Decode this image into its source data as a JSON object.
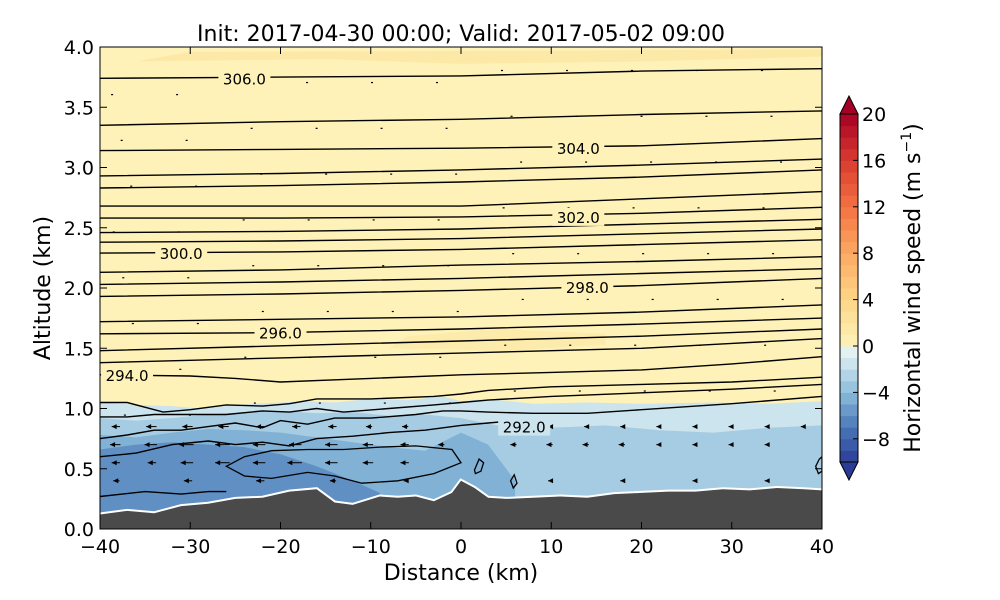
{
  "chart_data": {
    "type": "heatmap",
    "title": "Init: 2017-04-30 00:00; Valid: 2017-05-02 09:00",
    "xlabel": "Distance (km)",
    "ylabel": "Altitude (km)",
    "xlim": [
      -40,
      40
    ],
    "ylim": [
      0.0,
      4.0
    ],
    "xticks": [
      "−40",
      "−30",
      "−20",
      "−10",
      "0",
      "10",
      "20",
      "30",
      "40"
    ],
    "yticks": [
      "0.0",
      "0.5",
      "1.0",
      "1.5",
      "2.0",
      "2.5",
      "3.0",
      "3.5",
      "4.0"
    ],
    "grid": false,
    "colorbar": {
      "label": "Horizontal wind speed (m s",
      "label_sup": "−1",
      "label_close": ")",
      "range": [
        -10,
        20
      ],
      "step": 1,
      "extend": "both",
      "ticks": [
        "−8",
        "−4",
        "0",
        "4",
        "8",
        "12",
        "16",
        "20"
      ],
      "tick_values": [
        -8,
        -4,
        0,
        4,
        8,
        12,
        16,
        20
      ]
    },
    "contour_labels": [
      {
        "text": "306.0",
        "x": -24,
        "y": 3.74
      },
      {
        "text": "304.0",
        "x": 13,
        "y": 3.16
      },
      {
        "text": "302.0",
        "x": 13,
        "y": 2.59
      },
      {
        "text": "300.0",
        "x": -31,
        "y": 2.29
      },
      {
        "text": "298.0",
        "x": 14,
        "y": 2.01
      },
      {
        "text": "296.0",
        "x": -20,
        "y": 1.63
      },
      {
        "text": "294.0",
        "x": -37,
        "y": 1.28
      },
      {
        "text": "292.0",
        "x": 7,
        "y": 0.85
      }
    ],
    "terrain": {
      "x": [
        -40,
        -37,
        -34,
        -31,
        -28,
        -25,
        -22,
        -19,
        -16,
        -14,
        -12,
        -9,
        -7,
        -5,
        -3,
        -1,
        0,
        1.5,
        3,
        5,
        8,
        11,
        14,
        17,
        20,
        23,
        26,
        29,
        32,
        35,
        38,
        40
      ],
      "y": [
        0.12,
        0.15,
        0.13,
        0.19,
        0.21,
        0.25,
        0.26,
        0.31,
        0.33,
        0.22,
        0.2,
        0.27,
        0.26,
        0.27,
        0.23,
        0.3,
        0.4,
        0.34,
        0.26,
        0.25,
        0.26,
        0.27,
        0.26,
        0.29,
        0.3,
        0.31,
        0.31,
        0.33,
        0.32,
        0.34,
        0.33,
        0.32
      ]
    },
    "isentropes": [
      {
        "theta": 306.0,
        "x": [
          -40,
          -20,
          0,
          20,
          40
        ],
        "y": [
          3.74,
          3.75,
          3.76,
          3.8,
          3.82
        ]
      },
      {
        "theta": 305.5,
        "x": [
          -40,
          -20,
          0,
          20,
          40
        ],
        "y": [
          3.35,
          3.38,
          3.4,
          3.44,
          3.47
        ]
      },
      {
        "theta": 304.0,
        "x": [
          -40,
          -20,
          0,
          20,
          40
        ],
        "y": [
          3.14,
          3.15,
          3.16,
          3.18,
          3.24
        ]
      },
      {
        "theta": 303.5,
        "x": [
          -40,
          -20,
          0,
          20,
          40
        ],
        "y": [
          2.93,
          2.95,
          2.98,
          3.02,
          3.07
        ]
      },
      {
        "theta": 303.0,
        "x": [
          -40,
          -20,
          0,
          20,
          40
        ],
        "y": [
          2.83,
          2.85,
          2.88,
          2.92,
          2.98
        ]
      },
      {
        "theta": 302.0,
        "x": [
          -40,
          -20,
          0,
          20,
          40
        ],
        "y": [
          2.68,
          2.68,
          2.68,
          2.74,
          2.8
        ]
      },
      {
        "theta": 301.5,
        "x": [
          -40,
          -20,
          0,
          20,
          40
        ],
        "y": [
          2.58,
          2.58,
          2.59,
          2.62,
          2.67
        ]
      },
      {
        "theta": 301.0,
        "x": [
          -40,
          -20,
          0,
          20,
          40
        ],
        "y": [
          2.46,
          2.47,
          2.49,
          2.53,
          2.57
        ]
      },
      {
        "theta": 300.5,
        "x": [
          -40,
          -20,
          0,
          20,
          40
        ],
        "y": [
          2.38,
          2.39,
          2.41,
          2.45,
          2.49
        ]
      },
      {
        "theta": 300.0,
        "x": [
          -40,
          -20,
          0,
          20,
          40
        ],
        "y": [
          2.29,
          2.3,
          2.32,
          2.36,
          2.4
        ]
      },
      {
        "theta": 299.5,
        "x": [
          -40,
          -20,
          0,
          20,
          40
        ],
        "y": [
          2.13,
          2.15,
          2.19,
          2.22,
          2.26
        ]
      },
      {
        "theta": 298.5,
        "x": [
          -40,
          -20,
          0,
          20,
          40
        ],
        "y": [
          2.03,
          2.05,
          2.08,
          2.12,
          2.16
        ]
      },
      {
        "theta": 298.0,
        "x": [
          -40,
          -20,
          0,
          20,
          40
        ],
        "y": [
          1.93,
          1.95,
          1.98,
          2.02,
          2.08
        ]
      },
      {
        "theta": 297.5,
        "x": [
          -40,
          -20,
          0,
          20,
          40
        ],
        "y": [
          1.72,
          1.74,
          1.76,
          1.8,
          1.86
        ]
      },
      {
        "theta": 296.5,
        "x": [
          -40,
          -20,
          0,
          20,
          40
        ],
        "y": [
          1.62,
          1.63,
          1.66,
          1.7,
          1.75
        ]
      },
      {
        "theta": 296.0,
        "x": [
          -40,
          -20,
          0,
          20,
          40
        ],
        "y": [
          1.48,
          1.52,
          1.56,
          1.6,
          1.66
        ]
      },
      {
        "theta": 295.0,
        "x": [
          -40,
          -30,
          -20,
          -10,
          0,
          10,
          20,
          30,
          40
        ],
        "y": [
          1.38,
          1.4,
          1.42,
          1.44,
          1.46,
          1.48,
          1.5,
          1.54,
          1.58
        ]
      },
      {
        "theta": 294.0,
        "x": [
          -40,
          -30,
          -25,
          -20,
          -10,
          0,
          10,
          20,
          30,
          40
        ],
        "y": [
          1.28,
          1.27,
          1.25,
          1.22,
          1.25,
          1.28,
          1.3,
          1.32,
          1.37,
          1.43
        ]
      },
      {
        "theta": 293.0,
        "x": [
          -40,
          -37,
          -33,
          -30,
          -26,
          -22,
          -19,
          -16,
          -10,
          -3,
          0,
          3,
          10,
          20,
          30,
          40
        ],
        "y": [
          1.05,
          1.05,
          0.97,
          0.99,
          1.03,
          1.02,
          1.04,
          1.08,
          1.08,
          1.1,
          1.12,
          1.15,
          1.18,
          1.2,
          1.22,
          1.26
        ]
      },
      {
        "theta": 292.5,
        "x": [
          -40,
          -37,
          -34,
          -30,
          -26,
          -22,
          -19,
          -16,
          -13,
          -8,
          -3,
          0,
          3,
          10,
          20,
          30,
          40
        ],
        "y": [
          0.93,
          0.93,
          0.95,
          0.95,
          0.95,
          0.98,
          0.97,
          1.0,
          0.97,
          1.0,
          1.03,
          1.05,
          1.07,
          1.1,
          1.13,
          1.16,
          1.2
        ]
      },
      {
        "theta": 292.0,
        "x": [
          -40,
          -37,
          -34,
          -31,
          -28,
          -25,
          -22,
          -20,
          -17,
          -14,
          -10,
          -5,
          -2,
          0,
          3,
          8,
          14,
          20,
          30,
          40
        ],
        "y": [
          0.75,
          0.78,
          0.82,
          0.82,
          0.85,
          0.88,
          0.84,
          0.9,
          0.87,
          0.92,
          0.92,
          0.95,
          0.98,
          0.98,
          0.97,
          0.96,
          0.96,
          0.99,
          1.04,
          1.1
        ]
      },
      {
        "theta": 291.5,
        "x": [
          -40,
          -36,
          -32,
          -28,
          -25,
          -22,
          -19,
          -16,
          -12,
          -8,
          -4,
          0,
          3,
          6
        ],
        "y": [
          0.6,
          0.63,
          0.7,
          0.73,
          0.7,
          0.72,
          0.69,
          0.75,
          0.77,
          0.8,
          0.82,
          0.86,
          0.88,
          0.9
        ]
      },
      {
        "theta": 291.0,
        "x": [
          -40,
          -35,
          -31,
          -28,
          -26
        ],
        "y": [
          0.27,
          0.31,
          0.29,
          0.31,
          0.31
        ]
      }
    ],
    "closed_contours": [
      {
        "x": [
          -26,
          -24,
          -21,
          -17,
          -13,
          -9,
          -5,
          -1,
          0,
          -3,
          -7,
          -11,
          -14,
          -17,
          -21,
          -24,
          -26
        ],
        "y": [
          0.52,
          0.6,
          0.65,
          0.66,
          0.66,
          0.68,
          0.69,
          0.66,
          0.55,
          0.46,
          0.4,
          0.38,
          0.44,
          0.47,
          0.42,
          0.44,
          0.52
        ]
      },
      {
        "x": [
          1.5,
          2.0,
          2.5,
          2.2,
          1.6,
          1.5
        ],
        "y": [
          0.49,
          0.58,
          0.55,
          0.48,
          0.46,
          0.49
        ]
      },
      {
        "x": [
          5.5,
          5.9,
          6.2,
          5.8,
          5.5
        ],
        "y": [
          0.4,
          0.45,
          0.38,
          0.34,
          0.4
        ]
      },
      {
        "x": [
          39.3,
          39.7,
          40,
          40,
          39.6,
          39.3
        ],
        "y": [
          0.52,
          0.58,
          0.6,
          0.48,
          0.46,
          0.52
        ]
      }
    ],
    "cool_bands": [
      {
        "upper_x": [
          -40,
          -36,
          -32,
          -29,
          -26,
          -23,
          -20,
          -17,
          -14,
          -10,
          -6,
          -2,
          0,
          3,
          8,
          14,
          20,
          28,
          34,
          40
        ],
        "upper_y": [
          1.05,
          1.03,
          1.02,
          1.0,
          1.02,
          1.04,
          1.05,
          1.06,
          1.05,
          1.08,
          1.07,
          1.1,
          1.06,
          1.08,
          1.04,
          1.05,
          1.04,
          1.05,
          1.04,
          1.06
        ],
        "speed": -1.5
      },
      {
        "upper_x": [
          -40,
          -36,
          -32,
          -28,
          -24,
          -20,
          -16,
          -12,
          -8,
          -4,
          0,
          4,
          10,
          16,
          22,
          28,
          34,
          40
        ],
        "upper_y": [
          0.92,
          0.9,
          0.92,
          0.95,
          0.97,
          0.98,
          0.96,
          0.97,
          0.94,
          0.95,
          0.92,
          0.86,
          0.84,
          0.86,
          0.82,
          0.8,
          0.84,
          0.86
        ],
        "speed": -3
      },
      {
        "upper_x": [
          -40,
          -36,
          -32,
          -28,
          -24,
          -20,
          -16,
          -12,
          -8,
          -4,
          0,
          3,
          6
        ],
        "upper_y": [
          0.78,
          0.76,
          0.8,
          0.83,
          0.82,
          0.8,
          0.76,
          0.72,
          0.68,
          0.65,
          0.8,
          0.7,
          0.4
        ],
        "speed": -4.5
      },
      {
        "upper_x": [
          -40,
          -36,
          -32,
          -28,
          -24,
          -20,
          -16,
          -12,
          -9
        ],
        "upper_y": [
          0.66,
          0.7,
          0.72,
          0.7,
          0.68,
          0.62,
          0.52,
          0.4,
          0.3
        ],
        "speed": -6
      }
    ],
    "warm_patches": [
      {
        "x": [
          -36,
          -15,
          0,
          20,
          40,
          40,
          10,
          -30
        ],
        "y": [
          3.88,
          3.9,
          3.86,
          3.88,
          3.92,
          3.98,
          3.97,
          3.96
        ],
        "speed": 1.8
      },
      {
        "x": [
          -8,
          5,
          16,
          16,
          4,
          -6
        ],
        "y": [
          1.5,
          1.48,
          1.53,
          1.62,
          1.66,
          1.6
        ],
        "speed": 1.5
      }
    ],
    "wind_arrows": [
      {
        "x": -38,
        "y": 0.55,
        "u": -2.0
      },
      {
        "x": -34,
        "y": 0.55,
        "u": -2.0
      },
      {
        "x": -30,
        "y": 0.55,
        "u": -3.0
      },
      {
        "x": -26,
        "y": 0.55,
        "u": -3.5
      },
      {
        "x": -22,
        "y": 0.55,
        "u": -3.0
      },
      {
        "x": -18,
        "y": 0.55,
        "u": -3.5
      },
      {
        "x": -14,
        "y": 0.55,
        "u": -3.0
      },
      {
        "x": -10,
        "y": 0.55,
        "u": -2.5
      },
      {
        "x": -6,
        "y": 0.55,
        "u": -2.0
      },
      {
        "x": -38,
        "y": 0.7,
        "u": -2.5
      },
      {
        "x": -34,
        "y": 0.7,
        "u": -3.0
      },
      {
        "x": -30,
        "y": 0.7,
        "u": -3.5
      },
      {
        "x": -26,
        "y": 0.7,
        "u": -3.5
      },
      {
        "x": -22,
        "y": 0.7,
        "u": -3.0
      },
      {
        "x": -18,
        "y": 0.7,
        "u": -3.0
      },
      {
        "x": -14,
        "y": 0.7,
        "u": -3.0
      },
      {
        "x": -10,
        "y": 0.7,
        "u": -2.5
      },
      {
        "x": -6,
        "y": 0.7,
        "u": -2.0
      },
      {
        "x": -2,
        "y": 0.7,
        "u": -1.5
      },
      {
        "x": 6,
        "y": 0.7,
        "u": -1.5
      },
      {
        "x": 10,
        "y": 0.7,
        "u": -1.5
      },
      {
        "x": 14,
        "y": 0.7,
        "u": -1.5
      },
      {
        "x": 18,
        "y": 0.7,
        "u": -1.5
      },
      {
        "x": 22,
        "y": 0.7,
        "u": -1.0
      },
      {
        "x": 26,
        "y": 0.7,
        "u": -1.0
      },
      {
        "x": 30,
        "y": 0.7,
        "u": -1.0
      },
      {
        "x": 34,
        "y": 0.7,
        "u": -1.0
      },
      {
        "x": -38,
        "y": 0.85,
        "u": -2.0
      },
      {
        "x": -34,
        "y": 0.85,
        "u": -2.5
      },
      {
        "x": -30,
        "y": 0.85,
        "u": -2.5
      },
      {
        "x": -26,
        "y": 0.85,
        "u": -2.5
      },
      {
        "x": -22,
        "y": 0.85,
        "u": -2.0
      },
      {
        "x": -18,
        "y": 0.85,
        "u": -2.0
      },
      {
        "x": -14,
        "y": 0.85,
        "u": -2.0
      },
      {
        "x": -10,
        "y": 0.85,
        "u": -1.5
      },
      {
        "x": -6,
        "y": 0.85,
        "u": -1.5
      },
      {
        "x": 6,
        "y": 0.85,
        "u": -1.0
      },
      {
        "x": 10,
        "y": 0.85,
        "u": -1.0
      },
      {
        "x": 14,
        "y": 0.85,
        "u": -1.0
      },
      {
        "x": 18,
        "y": 0.85,
        "u": -1.0
      },
      {
        "x": 22,
        "y": 0.85,
        "u": -1.0
      },
      {
        "x": 26,
        "y": 0.85,
        "u": -1.0
      },
      {
        "x": 30,
        "y": 0.85,
        "u": -1.0
      },
      {
        "x": 34,
        "y": 0.85,
        "u": -1.0
      },
      {
        "x": 38,
        "y": 0.85,
        "u": -1.0
      },
      {
        "x": -38,
        "y": 0.4,
        "u": -1.5
      },
      {
        "x": -30,
        "y": 0.4,
        "u": -2.0
      },
      {
        "x": -22,
        "y": 0.4,
        "u": -2.0
      },
      {
        "x": -14,
        "y": 0.4,
        "u": -1.5
      },
      {
        "x": -6,
        "y": 0.4,
        "u": -1.0
      },
      {
        "x": 10,
        "y": 0.4,
        "u": -1.0
      },
      {
        "x": 18,
        "y": 0.4,
        "u": -1.0
      },
      {
        "x": 26,
        "y": 0.4,
        "u": -1.0
      },
      {
        "x": 34,
        "y": 0.4,
        "u": -1.0
      }
    ]
  }
}
